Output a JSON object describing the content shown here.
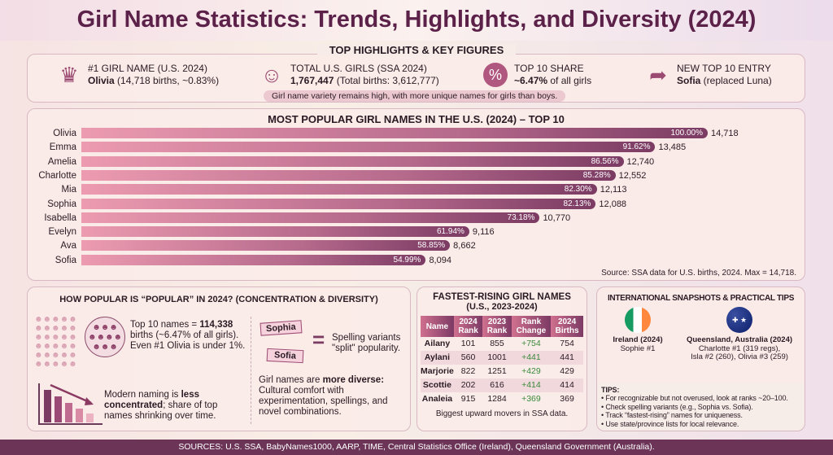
{
  "title": "Girl Name Statistics: Trends, Highlights, and Diversity (2024)",
  "highlights": {
    "title": "TOP HIGHLIGHTS & KEY FIGURES",
    "items": [
      {
        "icon": "crown-icon",
        "label": "#1 GIRL NAME (U.S. 2024)",
        "bold": "Olivia",
        "rest": " (14,718 births, ~0.83%)"
      },
      {
        "icon": "baby-face-icon",
        "label": "TOTAL U.S. GIRLS (SSA 2024)",
        "bold": "1,767,447",
        "rest": " (Total births: 3,612,777)"
      },
      {
        "icon": "percent-badge-icon",
        "label": "TOP 10 SHARE",
        "bold": "~6.47%",
        "rest": " of all girls"
      },
      {
        "icon": "arrow-up-right-icon",
        "label": "NEW TOP 10 ENTRY",
        "bold": "Sofia",
        "rest": " (replaced Luna)"
      }
    ],
    "note": "Girl name variety remains high, with more unique names for girls than boys."
  },
  "chart_data": {
    "type": "bar",
    "orientation": "horizontal",
    "title": "MOST POPULAR GIRL NAMES IN THE U.S. (2024) – TOP 10",
    "categories": [
      "Olivia",
      "Emma",
      "Amelia",
      "Charlotte",
      "Mia",
      "Sophia",
      "Isabella",
      "Evelyn",
      "Ava",
      "Sofia"
    ],
    "values": [
      14718,
      13485,
      12740,
      12552,
      12113,
      12088,
      10770,
      9116,
      8662,
      8094
    ],
    "value_labels": [
      "14,718",
      "13,485",
      "12,740",
      "12,552",
      "12,113",
      "12,088",
      "10,770",
      "9,116",
      "8,662",
      "8,094"
    ],
    "percent_labels": [
      "100.00%",
      "91.62%",
      "86.56%",
      "85.28%",
      "82.30%",
      "82.13%",
      "73.18%",
      "61.94%",
      "58.85%",
      "54.99%"
    ],
    "xlim": [
      0,
      14718
    ],
    "grid": false,
    "colors": {
      "start": "#ec9bb0",
      "end": "#7b3b63"
    },
    "source": "Source: SSA data for U.S. births, 2024. Max = 14,718."
  },
  "popular": {
    "title": "HOW POPULAR IS “POPULAR” IN 2024? (CONCENTRATION & DIVERSITY)",
    "top10_pre": "Top 10 names = ",
    "top10_bold": "114,338",
    "top10_rest": " births (~6.47% of all girls). Even #1 Olivia is under 1%.",
    "modern_pre": "Modern naming is ",
    "modern_bold": "less concentrated",
    "modern_rest": "; share of top names shrinking over time.",
    "sign1": "Sophia",
    "sign2": "Sofia",
    "equals": "=",
    "variants": "Spelling variants \"split\" popularity.",
    "diverse_pre": "Girl names are ",
    "diverse_bold": "more diverse:",
    "diverse_rest": " Cultural comfort with experimentation, spellings, and novel combinations."
  },
  "rising": {
    "title": "FASTEST-RISING GIRL NAMES",
    "subtitle": "(U.S., 2023-2024)",
    "headers": [
      "Name",
      "2024 Rank",
      "2023 Rank",
      "Rank Change",
      "2024 Births"
    ],
    "rows": [
      [
        "Ailany",
        "101",
        "855",
        "+754",
        "754"
      ],
      [
        "Aylani",
        "560",
        "1001",
        "+441",
        "441"
      ],
      [
        "Marjorie",
        "822",
        "1251",
        "+429",
        "429"
      ],
      [
        "Scottie",
        "202",
        "616",
        "+414",
        "414"
      ],
      [
        "Analeia",
        "915",
        "1284",
        "+369",
        "369"
      ]
    ],
    "note": "Biggest upward movers in SSA data."
  },
  "intl": {
    "title": "INTERNATIONAL SNAPSHOTS & PRACTICAL TIPS",
    "ireland": {
      "name": "Ireland (2024)",
      "detail": "Sophie #1"
    },
    "australia": {
      "name": "Queensland, Australia (2024)",
      "detail1": "Charlotte #1 (319 regs),",
      "detail2": "Isla #2 (260), Olivia #3 (259)"
    },
    "tips_title": "TIPS:",
    "tips": [
      "For recognizable but not overused, look at ranks ~20–100.",
      "Check spelling variants (e.g., Sophia vs. Sofia).",
      "Track “fastest-rising” names for uniqueness.",
      "Use state/province lists for local relevance."
    ]
  },
  "footer": "SOURCES: U.S. SSA, BabyNames1000, AARP, TIME, Central Statistics Office (Ireland), Queensland Government (Australia)."
}
